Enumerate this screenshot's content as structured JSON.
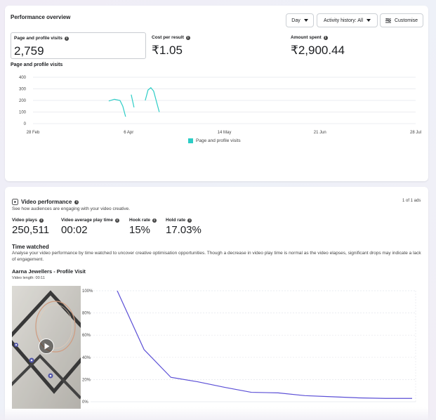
{
  "performance": {
    "title": "Performance overview",
    "day_button": "Day",
    "history_button": "Activity history: All",
    "customise_button": "Customise",
    "metrics": [
      {
        "label": "Page and profile visits",
        "value": "2,759"
      },
      {
        "label": "Cost per result",
        "value": "₹1.05"
      },
      {
        "label": "Amount spent",
        "value": "₹2,900.44"
      }
    ],
    "chart_title": "Page and profile visits",
    "legend": "Page and profile visits",
    "colors": {
      "series": "#2ccdc6",
      "grid": "#e4e6eb"
    }
  },
  "video": {
    "title": "Video performance",
    "subtitle": "See how audiences are engaging with your video creative.",
    "pager": "1 of 1 ads",
    "metrics": [
      {
        "label": "Video plays",
        "value": "250,511"
      },
      {
        "label": "Video average play time",
        "value": "00:02"
      },
      {
        "label": "Hook rate",
        "value": "15%"
      },
      {
        "label": "Hold rate",
        "value": "17.03%"
      }
    ],
    "time_watched_title": "Time watched",
    "time_watched_desc": "Analyse your video performance by time watched to uncover creative optimisation opportunities. Though a decrease in video play time is normal as the video elapses, significant drops may indicate a lack of engagement.",
    "ad_name": "Aarna Jewellers - Profile Visit",
    "video_length": "Video length: 00:11",
    "colors": {
      "line": "#5b4fd6"
    }
  },
  "chart_data": [
    {
      "type": "line",
      "title": "Page and profile visits",
      "x_ticks": [
        "28 Feb",
        "6 Apr",
        "14 May",
        "21 Jun",
        "28 Jul"
      ],
      "y_ticks": [
        "0",
        "100",
        "200",
        "300",
        "400"
      ],
      "ylim": [
        0,
        400
      ],
      "grid": true,
      "legend_placement": "bottom",
      "series": [
        {
          "name": "Page and profile visits",
          "segments": [
            [
              [
                27,
                195
              ],
              [
                29,
                210
              ],
              [
                31,
                200
              ],
              [
                32,
                150
              ],
              [
                33,
                60
              ]
            ],
            [
              [
                35,
                250
              ],
              [
                36,
                140
              ]
            ],
            [
              [
                40,
                200
              ],
              [
                41,
                290
              ],
              [
                42,
                310
              ],
              [
                43,
                280
              ],
              [
                45,
                100
              ]
            ]
          ]
        }
      ]
    },
    {
      "type": "line",
      "title": "Time watched",
      "y_ticks": [
        "0%",
        "20%",
        "40%",
        "60%",
        "80%",
        "100%"
      ],
      "ylim": [
        0,
        100
      ],
      "grid": true,
      "series": [
        {
          "values": [
            100,
            47,
            22,
            18,
            13,
            8.5,
            8,
            5.5,
            4.5,
            3.5,
            3,
            3
          ]
        }
      ]
    }
  ]
}
